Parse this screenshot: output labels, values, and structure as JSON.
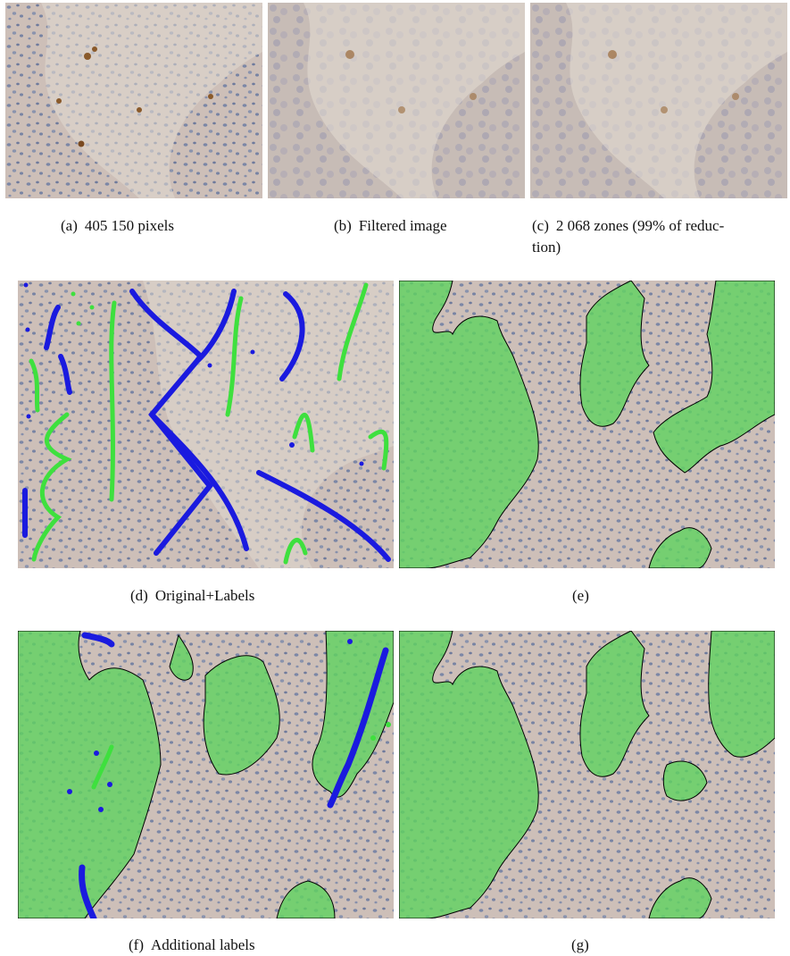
{
  "figure": {
    "panels": {
      "a": {
        "tag": "(a)",
        "text": "405 150 pixels"
      },
      "b": {
        "tag": "(b)",
        "text": "Filtered image"
      },
      "c": {
        "tag": "(c)",
        "text": "2 068 zones (99% of reduc-",
        "text2": "tion)"
      },
      "d": {
        "tag": "(d)",
        "text": "Original+Labels"
      },
      "e": {
        "tag": "(e)",
        "text": ""
      },
      "f": {
        "tag": "(f)",
        "text": "Additional labels"
      },
      "g": {
        "tag": "(g)",
        "text": ""
      }
    },
    "colors": {
      "tissue": "#c8b9b1",
      "stroma": "#d9d1c8",
      "nuclei": "#6f7fa0",
      "brown_nuclei": "#8a5a2b",
      "segmentation_fill": "#5fd35f",
      "segmentation_edge": "#000000",
      "label_blue": "#1a1adf",
      "label_green": "#3ee03e"
    }
  }
}
